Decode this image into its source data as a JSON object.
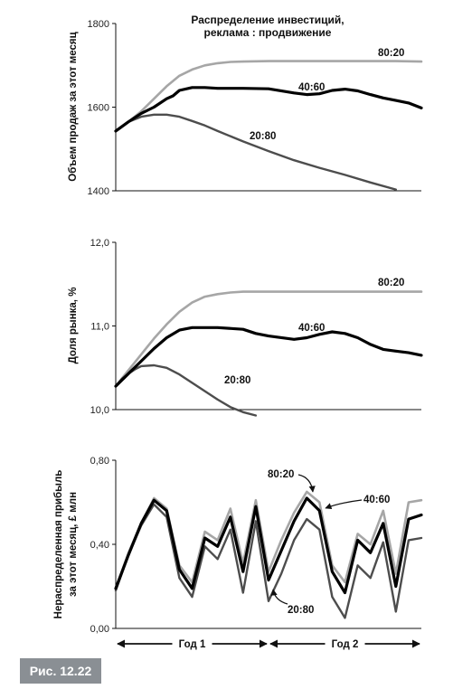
{
  "figure_label": "Рис. 12.22",
  "colors": {
    "s80_20": "#a6a6a6",
    "s40_60": "#000000",
    "s20_80": "#4d4d4d"
  },
  "chart_data": [
    {
      "type": "line",
      "title": "Распределение инвестиций,",
      "subtitle": "реклама : продвижение",
      "ylabel": "Объем продаж за этот месяц",
      "ylim": [
        1400,
        1800
      ],
      "yticks": [
        1400,
        1600,
        1800
      ],
      "ytick_labels": [
        "1400",
        "1600",
        "1800"
      ],
      "xlim": [
        0,
        24
      ],
      "series": [
        {
          "name": "80:20",
          "x": [
            0,
            1,
            2,
            3,
            4,
            5,
            6,
            7,
            8,
            9,
            10,
            12,
            14,
            16,
            18,
            20,
            22,
            24
          ],
          "y": [
            1543,
            1565,
            1590,
            1620,
            1650,
            1675,
            1690,
            1700,
            1705,
            1708,
            1709,
            1710,
            1710,
            1710,
            1710,
            1710,
            1710,
            1709
          ]
        },
        {
          "name": "40:60",
          "x": [
            0,
            1,
            2,
            3,
            4,
            4.5,
            5,
            6,
            7,
            8,
            10,
            12,
            14,
            15,
            16,
            17,
            18,
            19,
            20,
            21,
            22,
            23,
            24
          ],
          "y": [
            1543,
            1565,
            1585,
            1600,
            1620,
            1627,
            1640,
            1647,
            1647,
            1645,
            1645,
            1644,
            1634,
            1630,
            1632,
            1640,
            1643,
            1639,
            1630,
            1622,
            1616,
            1610,
            1598
          ]
        },
        {
          "name": "20:80",
          "x": [
            0,
            1,
            2,
            3,
            4,
            5,
            6,
            7,
            8,
            10,
            12,
            14,
            16,
            18,
            20,
            22
          ],
          "y": [
            1543,
            1565,
            1577,
            1582,
            1582,
            1577,
            1567,
            1556,
            1543,
            1518,
            1495,
            1473,
            1455,
            1438,
            1420,
            1403
          ]
        }
      ]
    },
    {
      "type": "line",
      "ylabel": "Доля рынка, %",
      "ylim": [
        10.0,
        12.0
      ],
      "yticks": [
        10.0,
        11.0,
        12.0
      ],
      "ytick_labels": [
        "10,0",
        "11,0",
        "12,0"
      ],
      "xlim": [
        0,
        24
      ],
      "series": [
        {
          "name": "80:20",
          "x": [
            0,
            1,
            2,
            3,
            4,
            5,
            6,
            7,
            8,
            9,
            10,
            12,
            14,
            16,
            18,
            20,
            22,
            24
          ],
          "y": [
            10.28,
            10.47,
            10.66,
            10.85,
            11.02,
            11.17,
            11.28,
            11.35,
            11.38,
            11.4,
            11.41,
            11.41,
            11.41,
            11.41,
            11.41,
            11.41,
            11.41,
            11.41
          ]
        },
        {
          "name": "40:60",
          "x": [
            0,
            1,
            2,
            3,
            4,
            5,
            6,
            7,
            8,
            10,
            11,
            12,
            14,
            15,
            16,
            17,
            18,
            19,
            20,
            21,
            22,
            23,
            24
          ],
          "y": [
            10.28,
            10.43,
            10.58,
            10.73,
            10.86,
            10.95,
            10.98,
            10.98,
            10.98,
            10.96,
            10.91,
            10.88,
            10.84,
            10.86,
            10.9,
            10.93,
            10.91,
            10.86,
            10.78,
            10.72,
            10.7,
            10.68,
            10.65
          ]
        },
        {
          "name": "20:80",
          "x": [
            0,
            0.5,
            1,
            1.5,
            2,
            3,
            4,
            5,
            6,
            7,
            8,
            9,
            10,
            11
          ],
          "y": [
            10.28,
            10.37,
            10.43,
            10.48,
            10.52,
            10.53,
            10.5,
            10.42,
            10.32,
            10.22,
            10.12,
            10.03,
            9.97,
            9.93
          ]
        }
      ]
    },
    {
      "type": "line",
      "ylabel": "Нераспределенная прибыль",
      "ylabel2": "за этот месяц, £ млн",
      "ylim": [
        0.0,
        0.8
      ],
      "yticks": [
        0.0,
        0.4,
        0.8
      ],
      "ytick_labels": [
        "0,00",
        "0,40",
        "0,80"
      ],
      "xlim": [
        0,
        24
      ],
      "x_periods": [
        "Год 1",
        "Год 2"
      ],
      "series": [
        {
          "name": "80:20",
          "x": [
            0,
            1,
            2,
            3,
            4,
            5,
            6,
            7,
            8,
            9,
            10,
            11,
            12,
            13,
            14,
            15,
            16,
            17,
            18,
            19,
            20,
            21,
            22,
            23,
            24
          ],
          "y": [
            0.19,
            0.36,
            0.5,
            0.62,
            0.57,
            0.3,
            0.22,
            0.46,
            0.42,
            0.57,
            0.31,
            0.61,
            0.27,
            0.42,
            0.55,
            0.65,
            0.6,
            0.3,
            0.22,
            0.45,
            0.4,
            0.56,
            0.26,
            0.6,
            0.61
          ]
        },
        {
          "name": "40:60",
          "x": [
            0,
            1,
            2,
            3,
            4,
            5,
            6,
            7,
            8,
            9,
            10,
            11,
            12,
            13,
            14,
            15,
            16,
            17,
            18,
            19,
            20,
            21,
            22,
            23,
            24
          ],
          "y": [
            0.19,
            0.35,
            0.5,
            0.61,
            0.56,
            0.28,
            0.19,
            0.43,
            0.39,
            0.53,
            0.27,
            0.58,
            0.23,
            0.37,
            0.51,
            0.62,
            0.56,
            0.27,
            0.17,
            0.42,
            0.36,
            0.5,
            0.2,
            0.52,
            0.54
          ]
        },
        {
          "name": "20:80",
          "x": [
            0,
            1,
            2,
            3,
            4,
            5,
            6,
            7,
            8,
            9,
            10,
            11,
            12,
            13,
            14,
            15,
            16,
            17,
            18,
            19,
            20,
            21,
            22,
            23,
            24
          ],
          "y": [
            0.18,
            0.35,
            0.49,
            0.59,
            0.53,
            0.24,
            0.15,
            0.39,
            0.33,
            0.47,
            0.17,
            0.51,
            0.13,
            0.26,
            0.42,
            0.52,
            0.47,
            0.15,
            0.05,
            0.3,
            0.24,
            0.41,
            0.08,
            0.42,
            0.43
          ]
        }
      ]
    }
  ]
}
